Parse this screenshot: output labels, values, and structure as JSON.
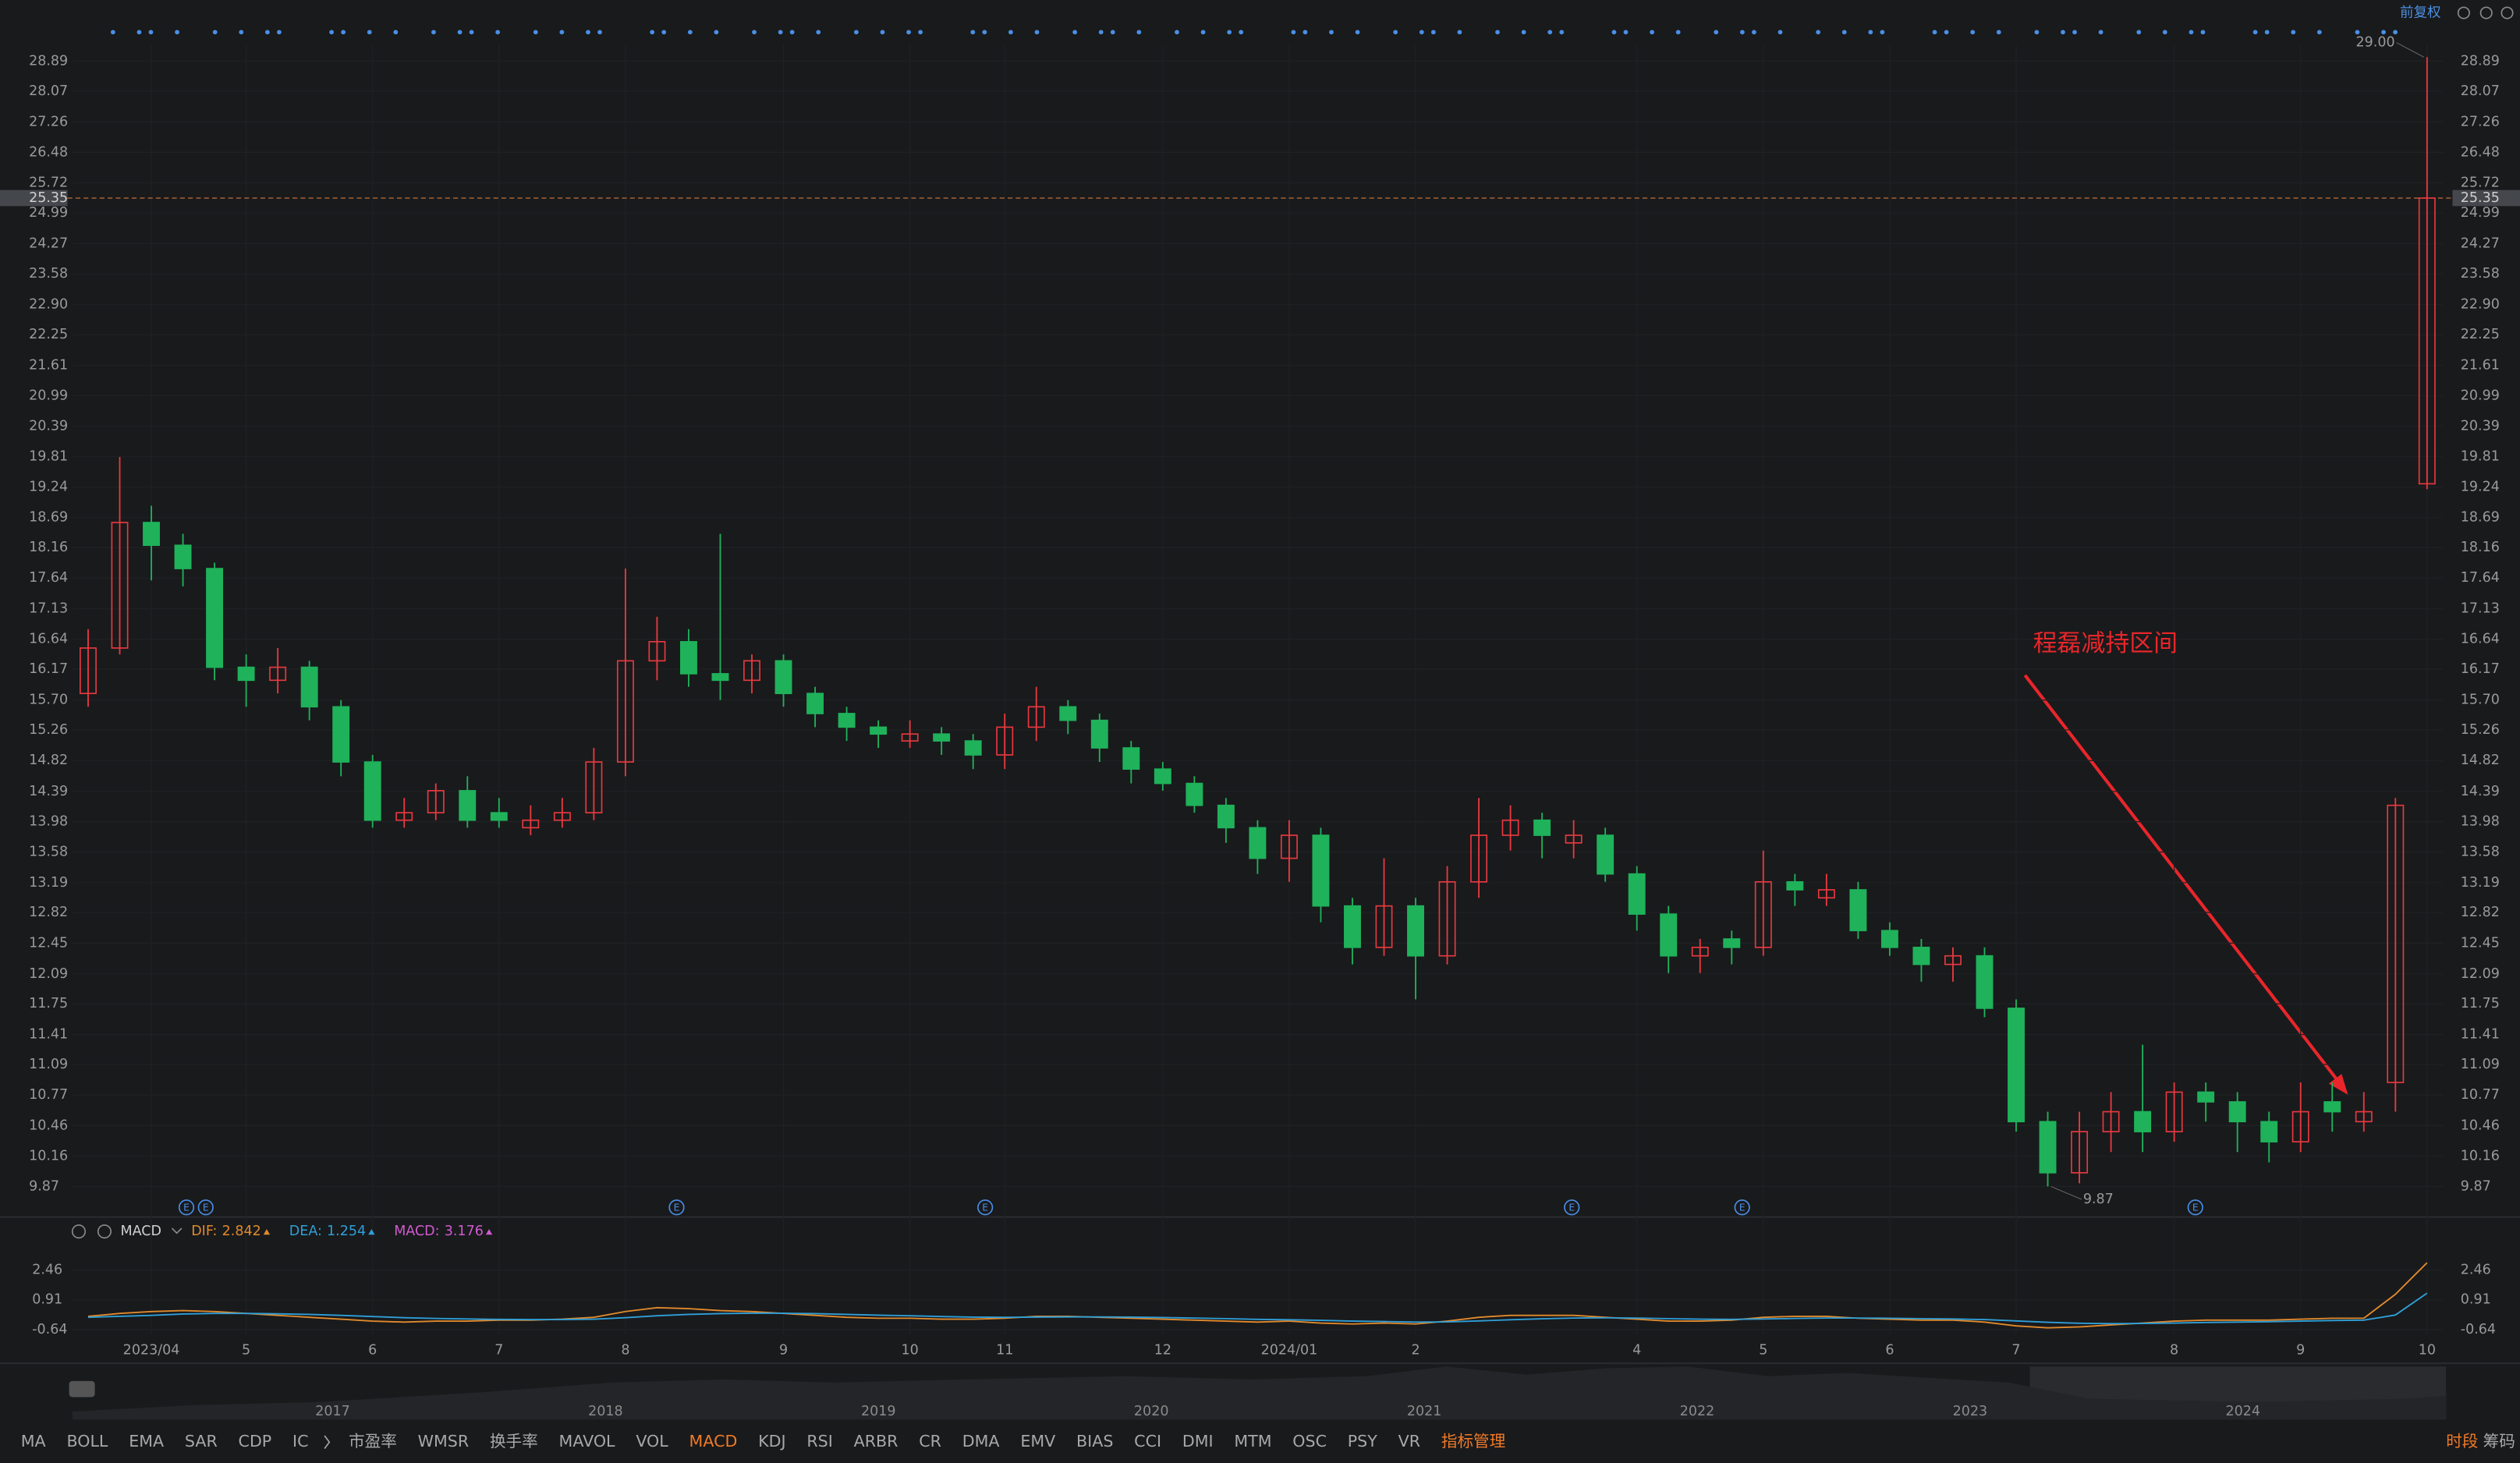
{
  "toolbar": {
    "adjust": "前复权"
  },
  "chart_data": {
    "type": "candlestick",
    "categories": [
      null,
      null,
      "2023/04",
      null,
      null,
      "5",
      null,
      null,
      null,
      "6",
      null,
      null,
      null,
      "7",
      null,
      null,
      null,
      "8",
      null,
      null,
      null,
      null,
      "9",
      null,
      null,
      null,
      "10",
      null,
      null,
      "11",
      null,
      null,
      null,
      null,
      "12",
      null,
      null,
      null,
      "2024/01",
      null,
      null,
      null,
      "2",
      null,
      null,
      null,
      null,
      null,
      null,
      "4",
      null,
      null,
      null,
      "5",
      null,
      null,
      null,
      "6",
      null,
      null,
      null,
      "7",
      null,
      null,
      null,
      null,
      "8",
      null,
      null,
      null,
      "9",
      null,
      null,
      null,
      "10"
    ],
    "open": [
      15.8,
      16.5,
      18.6,
      18.2,
      17.8,
      16.2,
      16.0,
      16.2,
      15.6,
      14.8,
      14.0,
      14.1,
      14.4,
      14.1,
      13.9,
      14.0,
      14.1,
      14.8,
      16.3,
      16.6,
      16.1,
      16.0,
      16.3,
      15.8,
      15.5,
      15.3,
      15.1,
      15.2,
      15.1,
      14.9,
      15.3,
      15.6,
      15.4,
      15.0,
      14.7,
      14.5,
      14.2,
      13.9,
      13.5,
      13.8,
      12.9,
      12.4,
      12.9,
      12.3,
      13.2,
      13.8,
      14.0,
      13.7,
      13.8,
      13.3,
      12.8,
      12.3,
      12.5,
      12.4,
      13.2,
      13.0,
      13.1,
      12.6,
      12.4,
      12.2,
      12.3,
      11.7,
      10.5,
      10.0,
      10.4,
      10.6,
      10.4,
      10.8,
      10.7,
      10.5,
      10.3,
      10.7,
      10.5,
      10.9,
      19.3
    ],
    "high": [
      16.8,
      19.8,
      18.9,
      18.4,
      17.9,
      16.4,
      16.5,
      16.3,
      15.7,
      14.9,
      14.3,
      14.5,
      14.6,
      14.3,
      14.2,
      14.3,
      15.0,
      17.8,
      17.0,
      16.8,
      18.4,
      16.4,
      16.4,
      15.9,
      15.6,
      15.4,
      15.4,
      15.3,
      15.2,
      15.5,
      15.9,
      15.7,
      15.5,
      15.1,
      14.8,
      14.6,
      14.3,
      14.0,
      14.0,
      13.9,
      13.0,
      13.5,
      13.0,
      13.4,
      14.3,
      14.2,
      14.1,
      14.0,
      13.9,
      13.4,
      12.9,
      12.5,
      12.6,
      13.6,
      13.3,
      13.3,
      13.2,
      12.7,
      12.5,
      12.4,
      12.4,
      11.8,
      10.6,
      10.6,
      10.8,
      11.3,
      10.9,
      10.9,
      10.8,
      10.6,
      10.9,
      10.9,
      10.8,
      14.3,
      29.0
    ],
    "low": [
      15.6,
      16.4,
      17.6,
      17.5,
      16.0,
      15.6,
      15.8,
      15.4,
      14.6,
      13.9,
      13.9,
      14.0,
      13.9,
      13.9,
      13.8,
      13.9,
      14.0,
      14.6,
      16.0,
      15.9,
      15.7,
      15.8,
      15.6,
      15.3,
      15.1,
      15.0,
      15.0,
      14.9,
      14.7,
      14.7,
      15.1,
      15.2,
      14.8,
      14.5,
      14.4,
      14.1,
      13.7,
      13.3,
      13.2,
      12.7,
      12.2,
      12.3,
      11.8,
      12.2,
      13.0,
      13.6,
      13.5,
      13.5,
      13.2,
      12.6,
      12.1,
      12.1,
      12.2,
      12.3,
      12.9,
      12.9,
      12.5,
      12.3,
      12.0,
      12.0,
      11.6,
      10.4,
      9.87,
      9.9,
      10.2,
      10.2,
      10.3,
      10.5,
      10.2,
      10.1,
      10.2,
      10.4,
      10.4,
      10.6,
      19.2
    ],
    "close": [
      16.5,
      18.6,
      18.2,
      17.8,
      16.2,
      16.0,
      16.2,
      15.6,
      14.8,
      14.0,
      14.1,
      14.4,
      14.0,
      14.0,
      14.0,
      14.1,
      14.8,
      16.3,
      16.6,
      16.1,
      16.0,
      16.3,
      15.8,
      15.5,
      15.3,
      15.2,
      15.2,
      15.1,
      14.9,
      15.3,
      15.6,
      15.4,
      15.0,
      14.7,
      14.5,
      14.2,
      13.9,
      13.5,
      13.8,
      12.9,
      12.4,
      12.9,
      12.3,
      13.2,
      13.8,
      14.0,
      13.8,
      13.8,
      13.3,
      12.8,
      12.3,
      12.4,
      12.4,
      13.2,
      13.1,
      13.1,
      12.6,
      12.4,
      12.2,
      12.3,
      11.7,
      10.5,
      10.0,
      10.4,
      10.6,
      10.4,
      10.8,
      10.7,
      10.5,
      10.3,
      10.6,
      10.6,
      10.6,
      14.2,
      25.35
    ],
    "colors": {
      "up": "#e8393f",
      "down": "#1fb25a"
    },
    "log_scale": true,
    "grid": true,
    "ylim": [
      9.87,
      28.89
    ],
    "yticks": [
      28.89,
      28.07,
      27.26,
      26.48,
      25.72,
      24.99,
      24.27,
      23.58,
      {
        "value": 22.9,
        "label": "22.90"
      },
      22.25,
      21.61,
      20.99,
      20.39,
      19.81,
      19.24,
      18.69,
      18.16,
      17.64,
      17.13,
      16.64,
      16.17,
      {
        "value": 15.7,
        "label": "15.70"
      },
      15.26,
      14.82,
      14.39,
      13.98,
      13.58,
      13.19,
      12.82,
      12.45,
      12.09,
      11.75,
      11.41,
      11.09,
      10.77,
      10.46,
      10.16,
      9.87
    ],
    "last_price": 25.35,
    "max_label": "29.00",
    "min_label": "9.87",
    "event_icon": "E",
    "annotation": {
      "text": "程磊减持区间",
      "color": "#e8262b"
    },
    "macd": {
      "title": "MACD",
      "ylim": [
        -0.64,
        2.46
      ],
      "yticks": [
        2.46,
        0.91,
        -0.64
      ],
      "series": [
        {
          "name": "DIF:",
          "color": "#e08a2c",
          "values": [
            0.05,
            0.2,
            0.3,
            0.35,
            0.3,
            0.2,
            0.1,
            0.0,
            -0.1,
            -0.2,
            -0.25,
            -0.2,
            -0.2,
            -0.15,
            -0.15,
            -0.1,
            0.0,
            0.3,
            0.5,
            0.45,
            0.35,
            0.3,
            0.2,
            0.1,
            0.0,
            -0.05,
            -0.05,
            -0.1,
            -0.1,
            -0.05,
            0.05,
            0.05,
            0.0,
            -0.05,
            -0.1,
            -0.15,
            -0.2,
            -0.25,
            -0.2,
            -0.3,
            -0.35,
            -0.3,
            -0.35,
            -0.2,
            0.0,
            0.1,
            0.1,
            0.1,
            0.0,
            -0.1,
            -0.2,
            -0.2,
            -0.15,
            0.0,
            0.05,
            0.05,
            -0.05,
            -0.1,
            -0.15,
            -0.15,
            -0.25,
            -0.45,
            -0.55,
            -0.5,
            -0.4,
            -0.3,
            -0.2,
            -0.15,
            -0.15,
            -0.15,
            -0.1,
            -0.05,
            -0.05,
            1.2,
            2.842
          ]
        },
        {
          "name": "DEA:",
          "color": "#2f9fd8",
          "values": [
            0.0,
            0.05,
            0.1,
            0.17,
            0.2,
            0.2,
            0.18,
            0.15,
            0.1,
            0.04,
            -0.02,
            -0.06,
            -0.09,
            -0.11,
            -0.12,
            -0.12,
            -0.1,
            -0.02,
            0.08,
            0.15,
            0.19,
            0.21,
            0.21,
            0.19,
            0.15,
            0.11,
            0.08,
            0.04,
            0.01,
            0.0,
            0.01,
            0.02,
            0.02,
            0.01,
            -0.01,
            -0.04,
            -0.07,
            -0.11,
            -0.13,
            -0.16,
            -0.2,
            -0.22,
            -0.25,
            -0.24,
            -0.19,
            -0.13,
            -0.08,
            -0.04,
            -0.03,
            -0.04,
            -0.07,
            -0.1,
            -0.11,
            -0.09,
            -0.06,
            -0.04,
            -0.04,
            -0.05,
            -0.07,
            -0.09,
            -0.12,
            -0.19,
            -0.26,
            -0.31,
            -0.33,
            -0.32,
            -0.3,
            -0.27,
            -0.25,
            -0.23,
            -0.2,
            -0.17,
            -0.15,
            0.12,
            1.254
          ]
        }
      ],
      "histogram": {
        "name": "MACD:",
        "color": "#d05bd0",
        "value": 3.176
      }
    }
  },
  "navigator": {
    "years": [
      "2017",
      "2018",
      "2019",
      "2020",
      "2021",
      "2022",
      "2023",
      "2024"
    ]
  },
  "indicator_tabs": [
    {
      "label": "MA"
    },
    {
      "label": "BOLL"
    },
    {
      "label": "EMA"
    },
    {
      "label": "SAR"
    },
    {
      "label": "CDP"
    },
    {
      "label": "IC"
    },
    {
      "label": "市盈率"
    },
    {
      "label": "WMSR"
    },
    {
      "label": "换手率"
    },
    {
      "label": "MAVOL"
    },
    {
      "label": "VOL"
    },
    {
      "label": "MACD",
      "active": true
    },
    {
      "label": "KDJ"
    },
    {
      "label": "RSI"
    },
    {
      "label": "ARBR"
    },
    {
      "label": "CR"
    },
    {
      "label": "DMA"
    },
    {
      "label": "EMV"
    },
    {
      "label": "BIAS"
    },
    {
      "label": "CCI"
    },
    {
      "label": "DMI"
    },
    {
      "label": "MTM"
    },
    {
      "label": "OSC"
    },
    {
      "label": "PSY"
    },
    {
      "label": "VR"
    },
    {
      "label": "指标管理",
      "active": true
    }
  ],
  "side_tabs": [
    {
      "label": "时段",
      "active": true
    },
    {
      "label": "筹码"
    }
  ]
}
